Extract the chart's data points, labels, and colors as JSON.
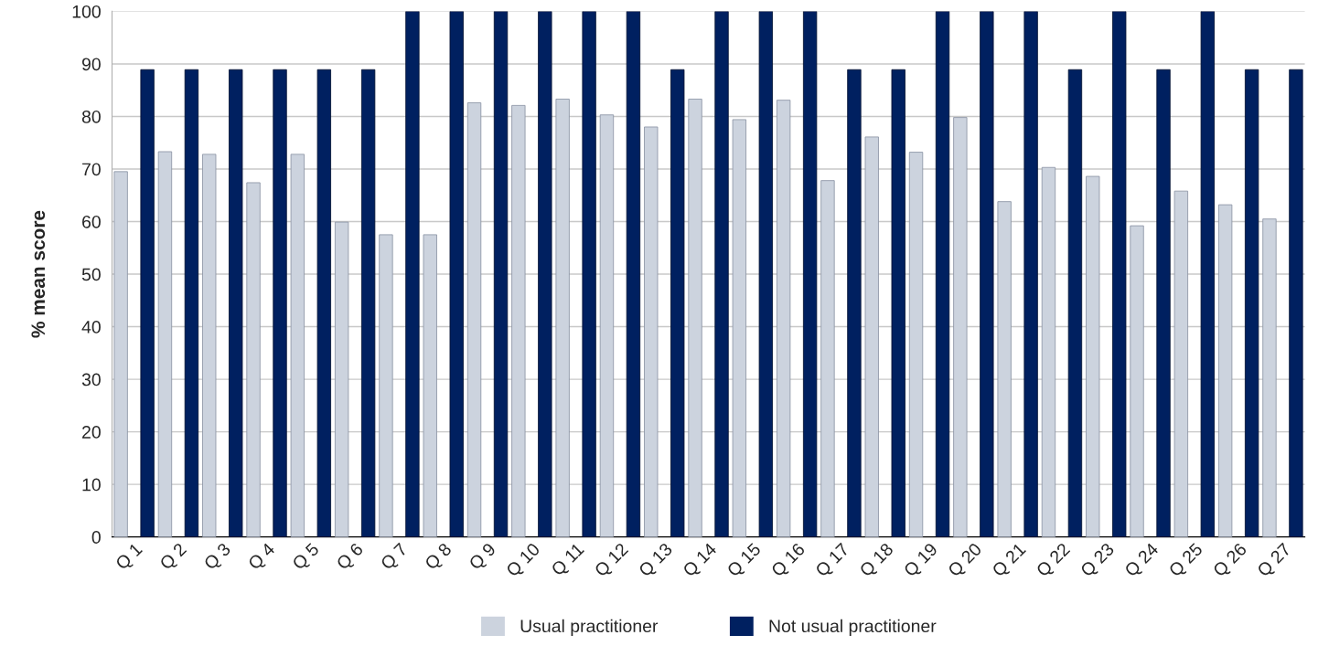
{
  "chart_data": {
    "type": "bar",
    "ylabel": "% mean score",
    "categories": [
      "Q 1",
      "Q 2",
      "Q 3",
      "Q 4",
      "Q 5",
      "Q 6",
      "Q 7",
      "Q 8",
      "Q 9",
      "Q 10",
      "Q 11",
      "Q 12",
      "Q 13",
      "Q 14",
      "Q 15",
      "Q 16",
      "Q 17",
      "Q 18",
      "Q 19",
      "Q 20",
      "Q 21",
      "Q 22",
      "Q 23",
      "Q 24",
      "Q 25",
      "Q 26",
      "Q 27"
    ],
    "series": [
      {
        "name": "Usual practitioner",
        "color": "#ccd3de",
        "values": [
          69.5,
          73.3,
          72.8,
          67.4,
          72.8,
          59.9,
          57.5,
          57.5,
          82.6,
          82.1,
          83.3,
          80.3,
          78,
          83.3,
          79.4,
          83.1,
          67.8,
          76.1,
          73.2,
          79.8,
          63.8,
          70.3,
          68.6,
          59.2,
          65.8,
          63.2,
          60.5
        ]
      },
      {
        "name": "Not usual practitioner",
        "color": "#002060",
        "values": [
          88.9,
          88.9,
          88.9,
          88.9,
          88.9,
          88.9,
          100,
          100,
          100,
          100,
          100,
          100,
          88.9,
          100,
          100,
          100,
          88.9,
          88.9,
          100,
          100,
          100,
          88.9,
          100,
          88.9,
          100,
          88.9,
          88.9
        ]
      }
    ],
    "ylim": [
      0,
      100
    ],
    "yticks": [
      0,
      10,
      20,
      30,
      40,
      50,
      60,
      70,
      80,
      90,
      100
    ],
    "grid": "y",
    "legend": "bottom"
  }
}
